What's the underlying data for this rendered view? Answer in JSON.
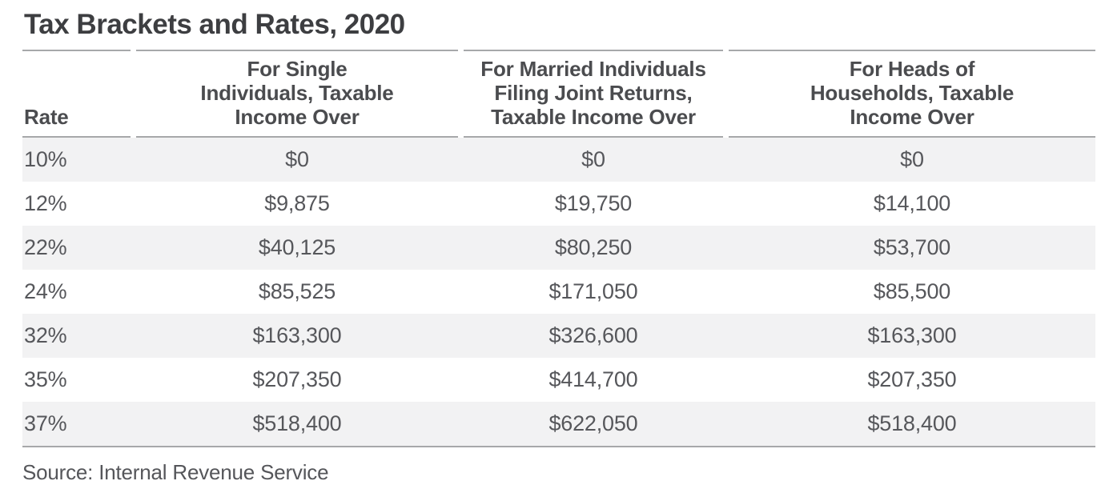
{
  "title": "Tax Brackets and Rates, 2020",
  "source": "Source: Internal Revenue Service",
  "colors": {
    "title_text": "#3d3e41",
    "header_text": "#4b4c4f",
    "data_text": "#56575b",
    "rule_line": "#a7a8aa",
    "zebra_row": "#f2f2f3",
    "background": "#ffffff"
  },
  "table": {
    "columns": [
      {
        "label": "Rate"
      },
      {
        "label": "For Single\nIndividuals, Taxable\nIncome Over"
      },
      {
        "label": "For Married Individuals\nFiling Joint Returns,\nTaxable Income Over"
      },
      {
        "label": "For Heads of\nHouseholds, Taxable\nIncome Over"
      }
    ],
    "rows": [
      {
        "cells": [
          "10%",
          "$0",
          "$0",
          "$0"
        ]
      },
      {
        "cells": [
          "12%",
          "$9,875",
          "$19,750",
          "$14,100"
        ]
      },
      {
        "cells": [
          "22%",
          "$40,125",
          "$80,250",
          "$53,700"
        ]
      },
      {
        "cells": [
          "24%",
          "$85,525",
          "$171,050",
          "$85,500"
        ]
      },
      {
        "cells": [
          "32%",
          "$163,300",
          "$326,600",
          "$163,300"
        ]
      },
      {
        "cells": [
          "35%",
          "$207,350",
          "$414,700",
          "$207,350"
        ]
      },
      {
        "cells": [
          "37%",
          "$518,400",
          "$622,050",
          "$518,400"
        ]
      }
    ]
  },
  "chart_data": {
    "type": "table",
    "title": "Tax Brackets and Rates, 2020",
    "columns": [
      "Rate",
      "For Single Individuals, Taxable Income Over",
      "For Married Individuals Filing Joint Returns, Taxable Income Over",
      "For Heads of Households, Taxable Income Over"
    ],
    "rows": [
      [
        "10%",
        "$0",
        "$0",
        "$0"
      ],
      [
        "12%",
        "$9,875",
        "$19,750",
        "$14,100"
      ],
      [
        "22%",
        "$40,125",
        "$80,250",
        "$53,700"
      ],
      [
        "24%",
        "$85,525",
        "$171,050",
        "$85,500"
      ],
      [
        "32%",
        "$163,300",
        "$326,600",
        "$163,300"
      ],
      [
        "35%",
        "$207,350",
        "$414,700",
        "$207,350"
      ],
      [
        "37%",
        "$518,400",
        "$622,050",
        "$518,400"
      ]
    ],
    "rates_numeric_percent": [
      10,
      12,
      22,
      24,
      32,
      35,
      37
    ],
    "single_thresholds_usd": [
      0,
      9875,
      40125,
      85525,
      163300,
      207350,
      518400
    ],
    "married_joint_thresholds_usd": [
      0,
      19750,
      80250,
      171050,
      326600,
      414700,
      622050
    ],
    "head_of_household_thresholds_usd": [
      0,
      14100,
      53700,
      85500,
      163300,
      207350,
      518400
    ],
    "source": "Source: Internal Revenue Service"
  }
}
